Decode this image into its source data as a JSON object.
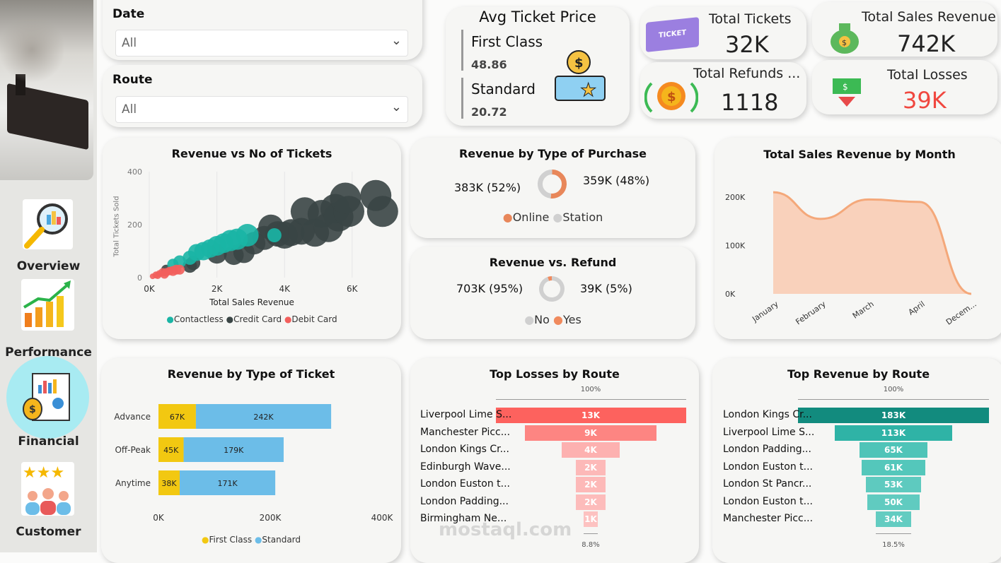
{
  "sidebar": {
    "nav": [
      {
        "label": "Overview",
        "icon": "magnifier-chart-icon"
      },
      {
        "label": "Performance",
        "icon": "growth-chart-icon"
      },
      {
        "label": "Financial",
        "icon": "financial-report-icon",
        "active": true
      },
      {
        "label": "Customer",
        "icon": "customer-rating-icon"
      }
    ]
  },
  "filters": {
    "date": {
      "label": "Date",
      "value": "All"
    },
    "route": {
      "label": "Route",
      "value": "All"
    }
  },
  "avg_ticket": {
    "title": "Avg Ticket Price",
    "first_label": "First Class",
    "first_value": "48.86",
    "standard_label": "Standard",
    "standard_value": "20.72"
  },
  "kpis": {
    "tickets": {
      "label": "Total Tickets",
      "value": "32K",
      "icon_text": "TICKET"
    },
    "sales": {
      "label": "Total Sales Revenue",
      "value": "742K"
    },
    "refunds": {
      "label": "Total Refunds ...",
      "value": "1118"
    },
    "losses": {
      "label": "Total Losses",
      "value": "39K",
      "color": "#f0473f"
    }
  },
  "scatter": {
    "title": "Revenue vs No of Tickets",
    "chart_data": {
      "type": "scatter",
      "xlabel": "Total Sales Revenue",
      "ylabel": "Total Tickets Sold",
      "xticks": [
        "0K",
        "2K",
        "4K",
        "6K"
      ],
      "yticks": [
        "0",
        "200",
        "400"
      ],
      "xlim": [
        0,
        7000
      ],
      "ylim": [
        0,
        400
      ],
      "legend": [
        {
          "name": "Contactless",
          "color": "#1ab5a5"
        },
        {
          "name": "Credit Card",
          "color": "#3a4545"
        },
        {
          "name": "Debit Card",
          "color": "#f25f5c"
        }
      ],
      "series": [
        {
          "name": "Debit Card",
          "points": [
            [
              100,
              5,
              4
            ],
            [
              200,
              10,
              5
            ],
            [
              300,
              15,
              5
            ],
            [
              400,
              20,
              6
            ],
            [
              500,
              20,
              6
            ],
            [
              600,
              25,
              6
            ],
            [
              700,
              25,
              7
            ],
            [
              800,
              30,
              7
            ],
            [
              900,
              30,
              7
            ],
            [
              250,
              8,
              5
            ],
            [
              450,
              12,
              6
            ]
          ]
        },
        {
          "name": "Contactless",
          "points": [
            [
              700,
              50,
              8
            ],
            [
              900,
              60,
              9
            ],
            [
              1200,
              75,
              10
            ],
            [
              1400,
              95,
              12
            ],
            [
              1600,
              100,
              13
            ],
            [
              1800,
              110,
              13
            ],
            [
              2000,
              120,
              14
            ],
            [
              2200,
              130,
              14
            ],
            [
              2400,
              140,
              15
            ],
            [
              2600,
              145,
              15
            ],
            [
              2900,
              160,
              16
            ],
            [
              3700,
              160,
              10
            ]
          ]
        },
        {
          "name": "Credit Card",
          "points": [
            [
              500,
              30,
              7
            ],
            [
              1200,
              45,
              10
            ],
            [
              1300,
              55,
              10
            ],
            [
              2000,
              90,
              14
            ],
            [
              2500,
              85,
              14
            ],
            [
              2800,
              95,
              15
            ],
            [
              3100,
              130,
              16
            ],
            [
              3400,
              150,
              17
            ],
            [
              3600,
              190,
              18
            ],
            [
              3800,
              165,
              18
            ],
            [
              4000,
              160,
              19
            ],
            [
              4200,
              170,
              19
            ],
            [
              4500,
              175,
              19
            ],
            [
              4600,
              250,
              20
            ],
            [
              4900,
              170,
              20
            ],
            [
              5100,
              240,
              20
            ],
            [
              5300,
              190,
              21
            ],
            [
              5500,
              260,
              21
            ],
            [
              5600,
              230,
              21
            ],
            [
              5800,
              300,
              22
            ],
            [
              5900,
              250,
              22
            ],
            [
              6700,
              310,
              22
            ],
            [
              6900,
              250,
              22
            ]
          ]
        }
      ]
    }
  },
  "purchase": {
    "title": "Revenue by Type of Purchase",
    "chart_data": {
      "type": "pie",
      "donut": true,
      "slices": [
        {
          "name": "Online",
          "value": 383,
          "label": "383K (52%)",
          "color": "#e8875a"
        },
        {
          "name": "Station",
          "value": 359,
          "label": "359K (48%)",
          "color": "#d0d0d0"
        }
      ]
    }
  },
  "refund": {
    "title": "Revenue vs. Refund",
    "chart_data": {
      "type": "pie",
      "donut": true,
      "slices": [
        {
          "name": "No",
          "value": 703,
          "label": "703K (95%)",
          "color": "#d0d0d0"
        },
        {
          "name": "Yes",
          "value": 39,
          "label": "39K (5%)",
          "color": "#f08a5d"
        }
      ]
    }
  },
  "month": {
    "title": "Total Sales Revenue by Month",
    "chart_data": {
      "type": "area",
      "color": "#f4a87a",
      "categories": [
        "January",
        "February",
        "March",
        "April",
        "Decem..."
      ],
      "values": [
        210000,
        155000,
        195000,
        190000,
        0
      ],
      "yticks": [
        "0K",
        "100K",
        "200K"
      ],
      "ylim": [
        0,
        230000
      ]
    }
  },
  "ticket_type": {
    "title": "Revenue by Type of Ticket",
    "chart_data": {
      "type": "bar",
      "stacked": true,
      "orientation": "horizontal",
      "categories": [
        "Advance",
        "Off-Peak",
        "Anytime"
      ],
      "series": [
        {
          "name": "First Class",
          "color": "#f2c811",
          "values": [
            67,
            45,
            38
          ],
          "labels": [
            "67K",
            "45K",
            "38K"
          ]
        },
        {
          "name": "Standard",
          "color": "#6cbde8",
          "values": [
            242,
            179,
            171
          ],
          "labels": [
            "242K",
            "179K",
            "171K"
          ]
        }
      ],
      "xticks": [
        "0K",
        "200K",
        "400K"
      ],
      "xlim": [
        0,
        400
      ]
    }
  },
  "losses": {
    "title": "Top Losses by Route",
    "chart_data": {
      "type": "funnel",
      "top_pct": "100%",
      "bottom_pct": "8.8%",
      "categories": [
        "Liverpool Lime S...",
        "Manchester Picc...",
        "London Kings Cr...",
        "Edinburgh Wave...",
        "London Euston t...",
        "London Padding...",
        "Birmingham Ne..."
      ],
      "values": [
        13,
        9,
        4,
        2,
        2,
        2,
        1
      ],
      "labels": [
        "13K",
        "9K",
        "4K",
        "2K",
        "2K",
        "2K",
        "1K"
      ],
      "colors": [
        "#fd625e",
        "#fd8582",
        "#fdb1b0",
        "#fdb9b8",
        "#fdb9b8",
        "#fdbcbb",
        "#fdc2c1"
      ]
    }
  },
  "top_revenue": {
    "title": "Top Revenue by Route",
    "chart_data": {
      "type": "funnel",
      "top_pct": "100%",
      "bottom_pct": "18.5%",
      "categories": [
        "London Kings Cr...",
        "Liverpool Lime S...",
        "London Padding...",
        "London Euston t...",
        "London St Pancr...",
        "London Euston t...",
        "Manchester Picc..."
      ],
      "values": [
        183,
        113,
        65,
        61,
        53,
        50,
        34
      ],
      "labels": [
        "183K",
        "113K",
        "65K",
        "61K",
        "53K",
        "50K",
        "34K"
      ],
      "colors": [
        "#128b7e",
        "#2fb3a6",
        "#4fc4b8",
        "#54c7bb",
        "#5ecabf",
        "#60cbc0",
        "#63ccc1"
      ]
    }
  },
  "watermark": "mostaql.com"
}
